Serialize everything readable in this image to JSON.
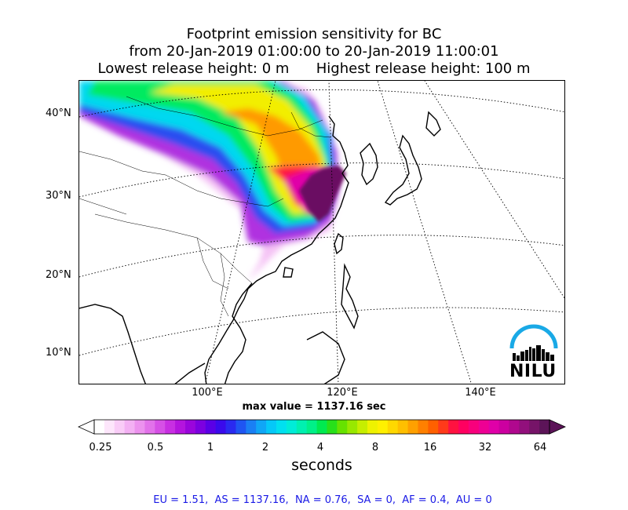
{
  "title": {
    "line1": "Footprint emission sensitivity for BC",
    "line2": "from 20-Jan-2019 01:00:00 to 20-Jan-2019 11:00:01",
    "line3": "Lowest release height: 0 m      Highest release height: 100 m"
  },
  "map": {
    "lat_labels": [
      "40°N",
      "30°N",
      "20°N",
      "10°N"
    ],
    "lon_labels": [
      "100°E",
      "120°E",
      "140°E"
    ],
    "max_value_text": "max value = 1137.16 sec",
    "logo_text": "NILU",
    "logo_color": "#19a9e6"
  },
  "colorbar": {
    "tick_labels": [
      "0.25",
      "0.5",
      "1",
      "2",
      "4",
      "8",
      "16",
      "32",
      "64"
    ],
    "unit": "seconds",
    "colors": [
      "#ffffff",
      "#fde6fb",
      "#f9ccf7",
      "#f3b0f3",
      "#ec92ee",
      "#e272ea",
      "#d650e6",
      "#c82fe2",
      "#b414de",
      "#9a05dc",
      "#7c00e0",
      "#5a00e6",
      "#3a0aec",
      "#2a2af0",
      "#1f55f2",
      "#1a7ff4",
      "#10a6f6",
      "#05c8f8",
      "#00e0f0",
      "#00ecd8",
      "#00f0b0",
      "#00f088",
      "#00ea50",
      "#28e01a",
      "#66e200",
      "#98e800",
      "#c6ee00",
      "#eef200",
      "#fff000",
      "#ffd800",
      "#ffbf00",
      "#ffa000",
      "#ff8000",
      "#ff6000",
      "#ff3a1a",
      "#ff1240",
      "#ff0060",
      "#f8007c",
      "#ee0094",
      "#e000a8",
      "#cc00a0",
      "#b0088e",
      "#92107c",
      "#761468",
      "#5c1458"
    ]
  },
  "region_summary": "EU = 1.51,  AS = 1137.16,  NA = 0.76,  SA = 0,  AF = 0.4,  AU = 0"
}
